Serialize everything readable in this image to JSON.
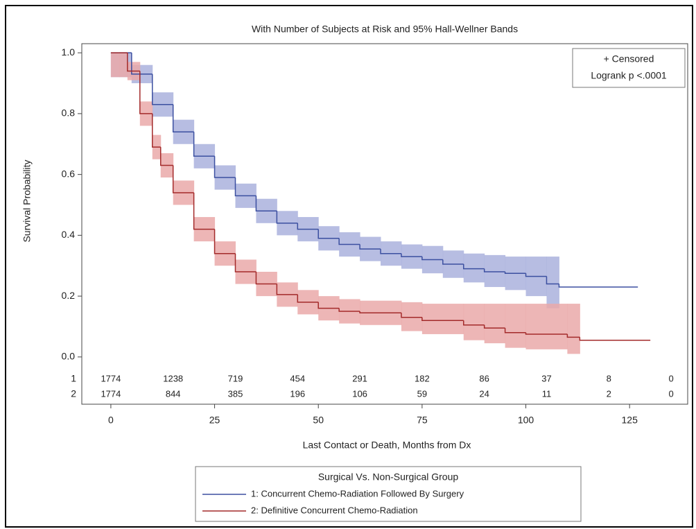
{
  "chart_data": {
    "type": "step",
    "title": "With Number of Subjects at Risk and 95% Hall-Wellner Bands",
    "x_label": "Last Contact or Death, Months from Dx",
    "y_label": "Survival Probability",
    "xlim": [
      -7,
      139
    ],
    "ylim": [
      -0.03,
      1.03
    ],
    "xticks": [
      0,
      25,
      50,
      75,
      100,
      125
    ],
    "yticks": [
      {
        "value": 0,
        "label": "0.0"
      },
      0.2,
      0.4,
      0.6,
      0.8,
      {
        "value": 1,
        "label": "1.0"
      }
    ],
    "inset_legend": [
      "+ Censored",
      "Logrank p <.0001"
    ],
    "legend_title": "Surgical Vs. Non-Surgical Group",
    "series": [
      {
        "name": "1: Concurrent Chemo-Radiation Followed By Surgery",
        "color": "#3b4fa0",
        "band_color": "#aab2dd",
        "x": [
          0,
          2,
          5,
          10,
          15,
          20,
          25,
          30,
          35,
          40,
          45,
          50,
          55,
          60,
          65,
          70,
          75,
          80,
          85,
          90,
          95,
          100,
          105,
          108,
          127
        ],
        "values": [
          1,
          1,
          0.93,
          0.83,
          0.74,
          0.66,
          0.59,
          0.53,
          0.48,
          0.44,
          0.42,
          0.39,
          0.37,
          0.355,
          0.34,
          0.33,
          0.32,
          0.305,
          0.29,
          0.28,
          0.275,
          0.265,
          0.24,
          0.23,
          0.23
        ],
        "band_upper": [
          1,
          1,
          0.96,
          0.87,
          0.78,
          0.7,
          0.63,
          0.57,
          0.52,
          0.48,
          0.46,
          0.43,
          0.41,
          0.395,
          0.38,
          0.37,
          0.365,
          0.35,
          0.34,
          0.335,
          0.33,
          0.33,
          0.33,
          null,
          null
        ],
        "band_lower": [
          0.92,
          0.92,
          0.9,
          0.79,
          0.7,
          0.62,
          0.55,
          0.49,
          0.44,
          0.4,
          0.38,
          0.35,
          0.33,
          0.315,
          0.3,
          0.29,
          0.275,
          0.26,
          0.245,
          0.23,
          0.22,
          0.2,
          0.16,
          null,
          null
        ]
      },
      {
        "name": "2: Definitive Concurrent Chemo-Radiation",
        "color": "#a32a2a",
        "band_color": "#eaa9a9",
        "x": [
          0,
          2,
          4,
          7,
          10,
          12,
          15,
          20,
          25,
          30,
          35,
          40,
          45,
          50,
          55,
          60,
          70,
          75,
          85,
          90,
          95,
          100,
          110,
          113,
          130
        ],
        "values": [
          1,
          1,
          0.94,
          0.8,
          0.69,
          0.63,
          0.54,
          0.42,
          0.34,
          0.28,
          0.24,
          0.205,
          0.18,
          0.16,
          0.15,
          0.145,
          0.13,
          0.12,
          0.105,
          0.095,
          0.08,
          0.075,
          0.065,
          0.055,
          0.055
        ],
        "band_upper": [
          1,
          1,
          0.97,
          0.84,
          0.73,
          0.67,
          0.58,
          0.46,
          0.38,
          0.32,
          0.28,
          0.245,
          0.22,
          0.2,
          0.19,
          0.185,
          0.18,
          0.175,
          0.175,
          0.175,
          0.175,
          0.175,
          0.175,
          null,
          null
        ],
        "band_lower": [
          0.92,
          0.92,
          0.91,
          0.76,
          0.65,
          0.59,
          0.5,
          0.38,
          0.3,
          0.24,
          0.2,
          0.165,
          0.14,
          0.12,
          0.11,
          0.105,
          0.085,
          0.075,
          0.055,
          0.045,
          0.03,
          0.025,
          0.01,
          null,
          null
        ]
      }
    ],
    "risk_table": {
      "rows": [
        "1",
        "2"
      ],
      "times": [
        0,
        15,
        30,
        45,
        60,
        75,
        90,
        105,
        120,
        135
      ],
      "counts": [
        [
          1774,
          1238,
          719,
          454,
          291,
          182,
          86,
          37,
          8,
          0
        ],
        [
          1774,
          844,
          385,
          196,
          106,
          59,
          24,
          11,
          2,
          0
        ]
      ]
    }
  }
}
